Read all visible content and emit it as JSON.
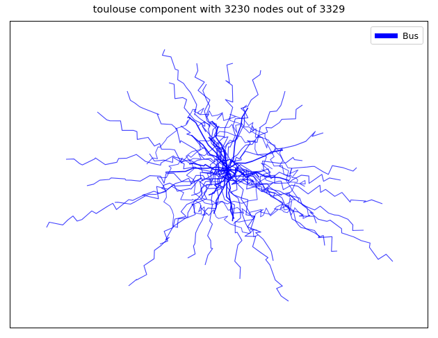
{
  "title": "toulouse component with 3230 nodes out of 3329",
  "legend": {
    "label": "Bus",
    "color": "#0000ff"
  },
  "chart_data": {
    "type": "network",
    "title": "toulouse component with 3230 nodes out of 3329",
    "xlabel": "",
    "ylabel": "",
    "grid": false,
    "legend_position": "top-right",
    "series": [
      {
        "name": "Bus",
        "color": "#0000ff",
        "component_nodes": 3230,
        "total_nodes": 3329
      }
    ]
  }
}
